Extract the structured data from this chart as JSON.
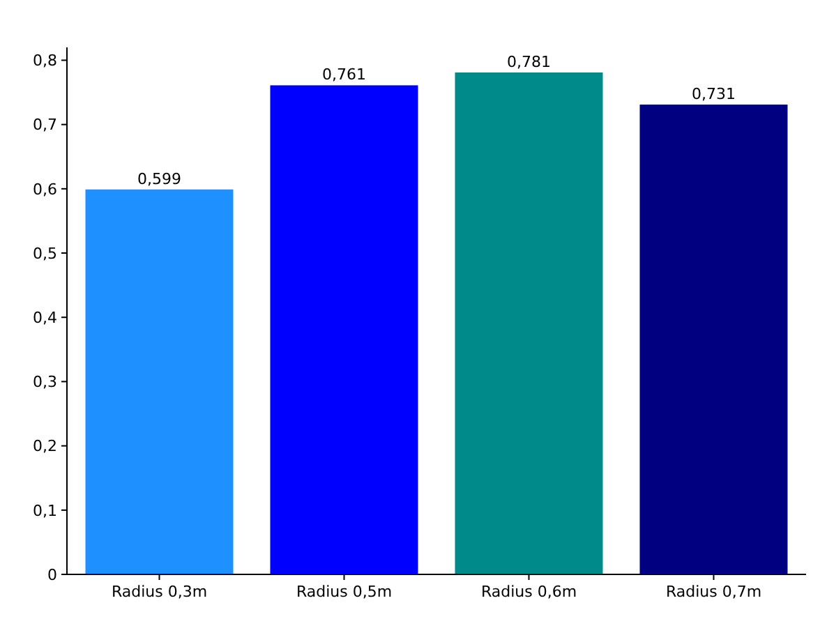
{
  "chart_data": {
    "type": "bar",
    "categories": [
      "Radius 0,3m",
      "Radius 0,5m",
      "Radius 0,6m",
      "Radius 0,7m"
    ],
    "values": [
      0.599,
      0.761,
      0.781,
      0.731
    ],
    "colors": [
      "#1e90ff",
      "#0000ff",
      "#008b8b",
      "#000080"
    ],
    "value_labels": [
      "0,599",
      "0,761",
      "0,781",
      "0,731"
    ],
    "ylim": [
      0,
      0.82
    ],
    "yticks": [
      {
        "value": 0,
        "label": "0"
      },
      {
        "value": 0.1,
        "label": "0,1"
      },
      {
        "value": 0.2,
        "label": "0,2"
      },
      {
        "value": 0.3,
        "label": "0,3"
      },
      {
        "value": 0.4,
        "label": "0,4"
      },
      {
        "value": 0.5,
        "label": "0,5"
      },
      {
        "value": 0.6,
        "label": "0,6"
      },
      {
        "value": 0.7,
        "label": "0,7"
      },
      {
        "value": 0.8,
        "label": "0,8"
      }
    ]
  }
}
